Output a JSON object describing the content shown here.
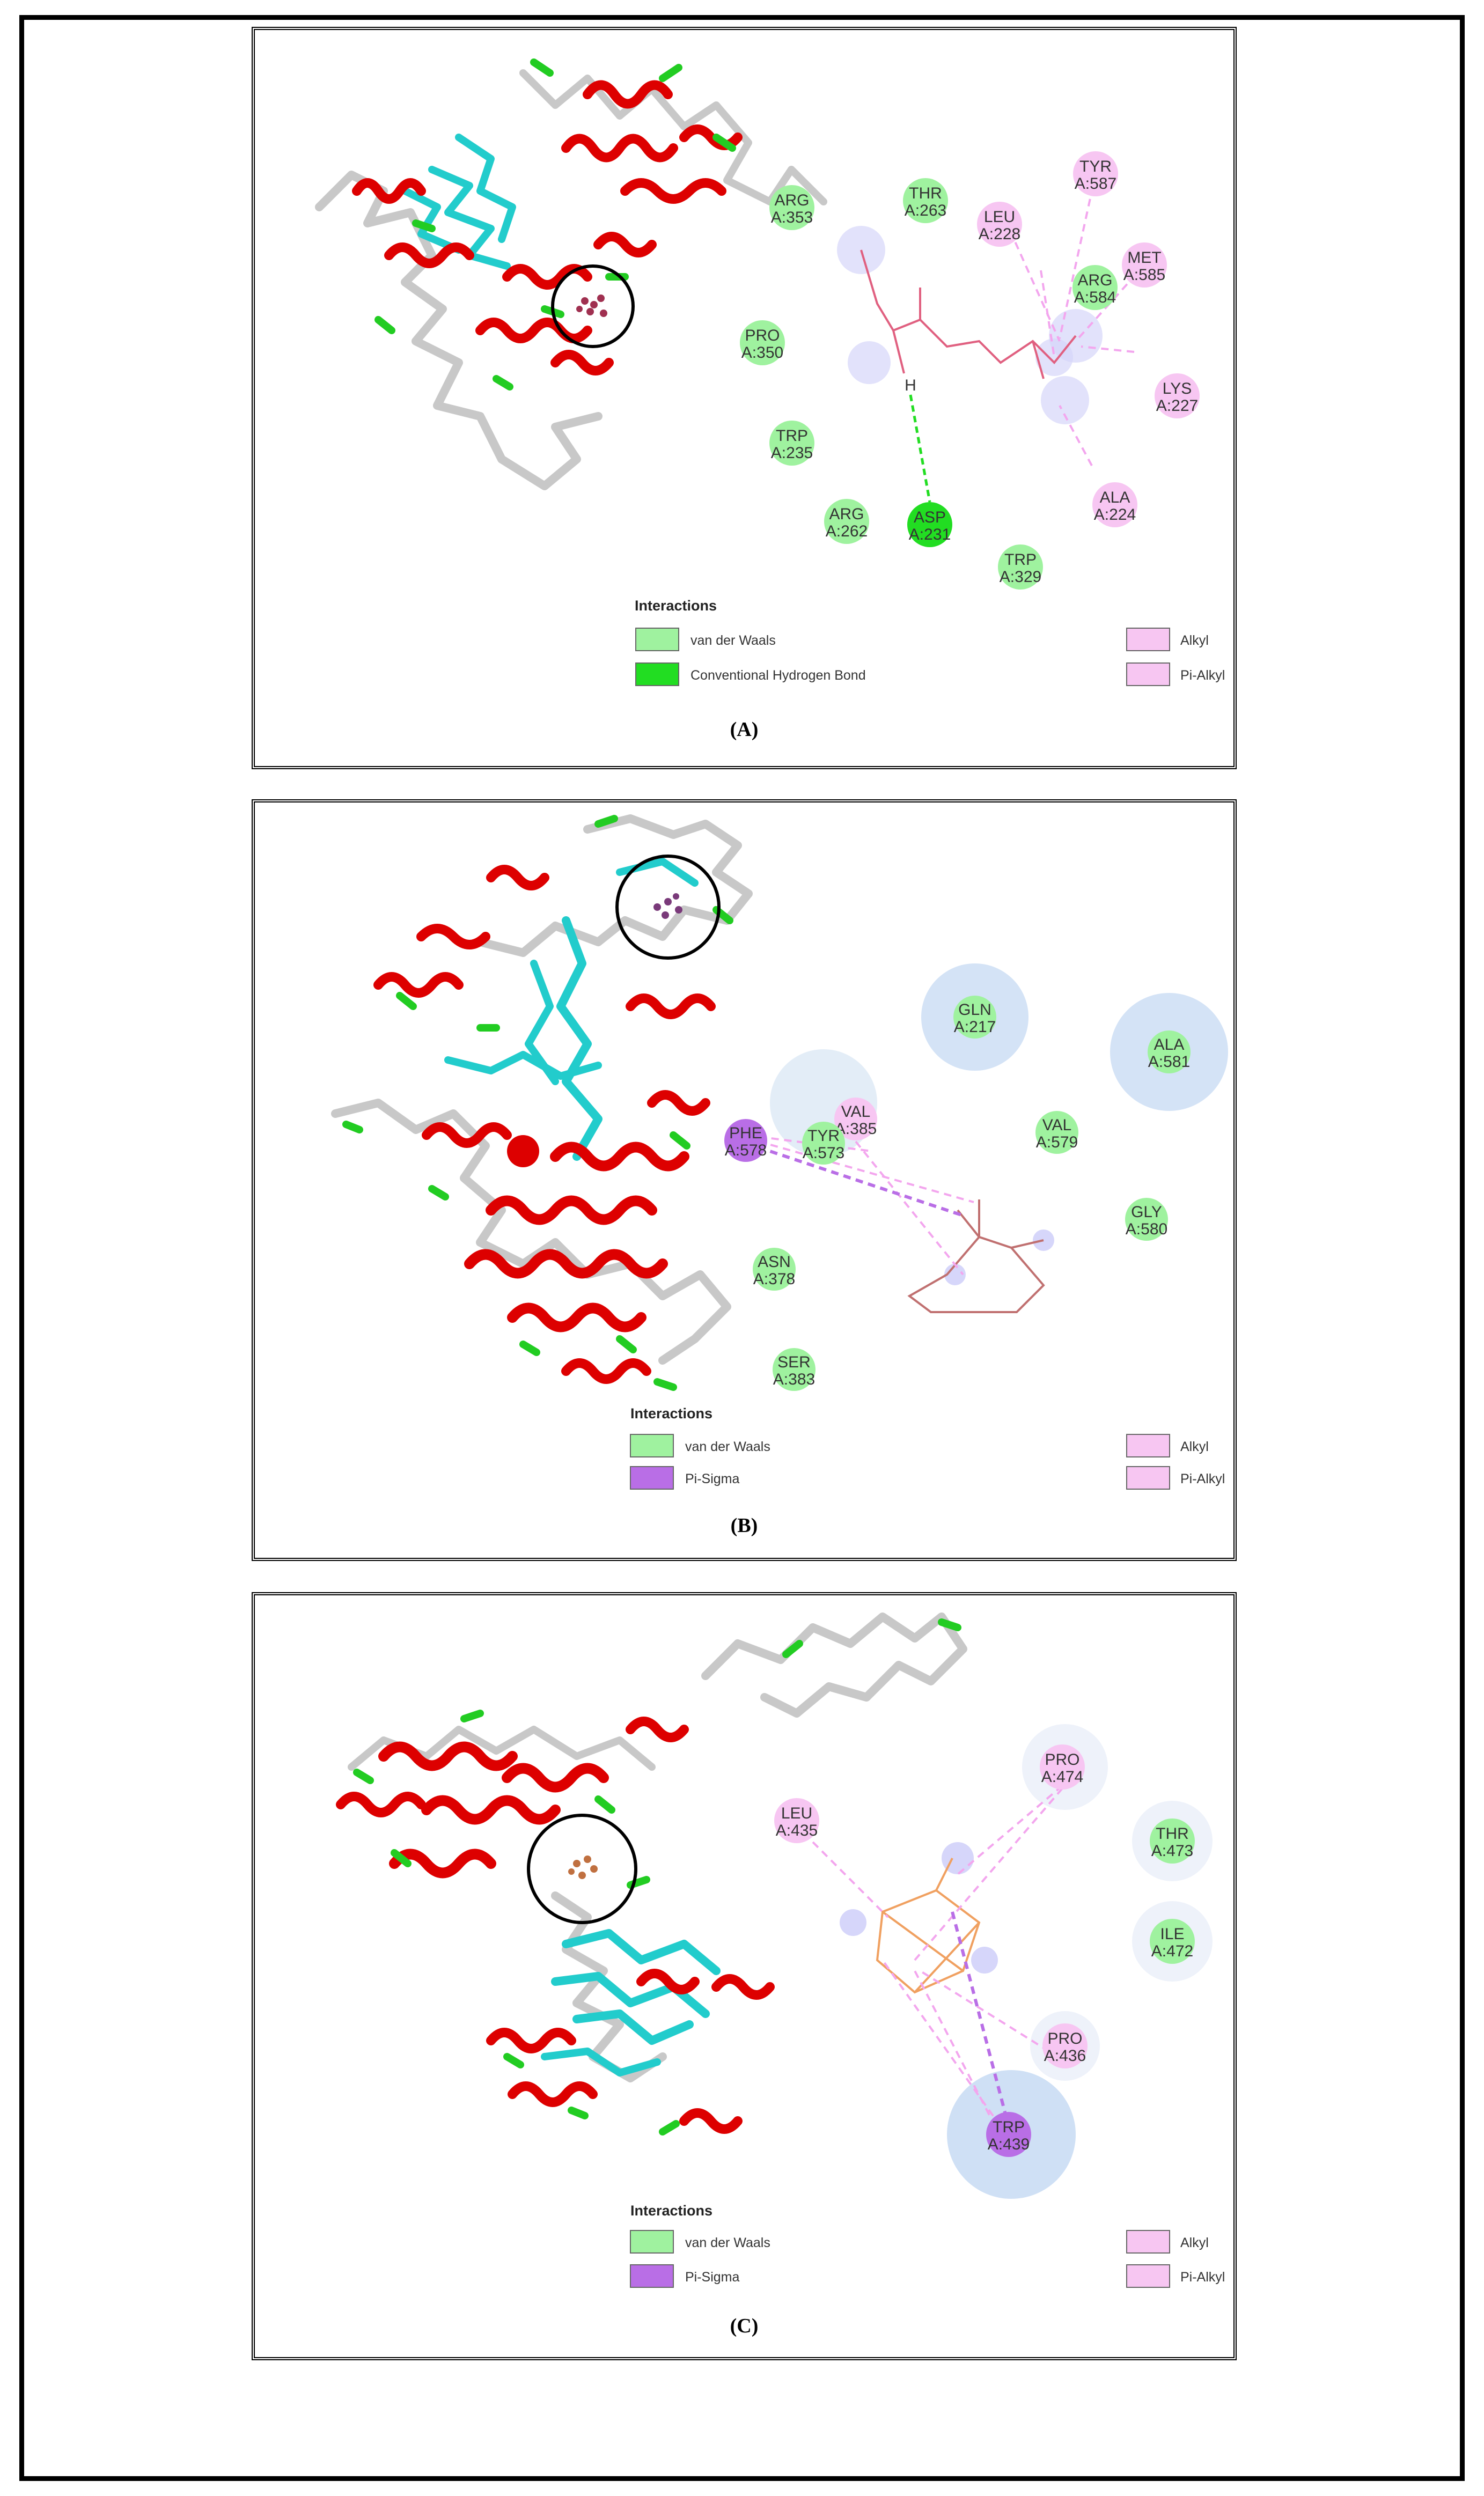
{
  "colors": {
    "van_der_waals": "#9ff29f",
    "hydrogen_bond": "#22dd22",
    "alkyl": "#f7c6f2",
    "pi_sigma": "#b96ee6",
    "helix": "#dd0000",
    "sheet": "#22cccc",
    "turn": "#22cc22",
    "coil": "#c8c8c8"
  },
  "panels": [
    {
      "label": "(A)",
      "legend_title": "Interactions",
      "legend_left": [
        "van der Waals",
        "Conventional Hydrogen Bond"
      ],
      "legend_right": [
        "Alkyl",
        "Pi-Alkyl"
      ],
      "residues": [
        {
          "l1": "ARG",
          "l2": "A:353"
        },
        {
          "l1": "THR",
          "l2": "A:263"
        },
        {
          "l1": "LEU",
          "l2": "A:228"
        },
        {
          "l1": "TYR",
          "l2": "A:587"
        },
        {
          "l1": "MET",
          "l2": "A:585"
        },
        {
          "l1": "ARG",
          "l2": "A:584"
        },
        {
          "l1": "PRO",
          "l2": "A:350"
        },
        {
          "l1": "LYS",
          "l2": "A:227"
        },
        {
          "l1": "TRP",
          "l2": "A:235"
        },
        {
          "l1": "ALA",
          "l2": "A:224"
        },
        {
          "l1": "ARG",
          "l2": "A:262"
        },
        {
          "l1": "ASP",
          "l2": "A:231"
        },
        {
          "l1": "TRP",
          "l2": "A:329"
        }
      ],
      "atom_label": "H"
    },
    {
      "label": "(B)",
      "legend_title": "Interactions",
      "legend_left": [
        "van der Waals",
        "Pi-Sigma"
      ],
      "legend_right": [
        "Alkyl",
        "Pi-Alkyl"
      ],
      "residues": [
        {
          "l1": "GLN",
          "l2": "A:217"
        },
        {
          "l1": "ALA",
          "l2": "A:581"
        },
        {
          "l1": "VAL",
          "l2": "A:385"
        },
        {
          "l1": "TYR",
          "l2": "A:573"
        },
        {
          "l1": "VAL",
          "l2": "A:579"
        },
        {
          "l1": "PHE",
          "l2": "A:578"
        },
        {
          "l1": "GLY",
          "l2": "A:580"
        },
        {
          "l1": "ASN",
          "l2": "A:378"
        },
        {
          "l1": "SER",
          "l2": "A:383"
        }
      ]
    },
    {
      "label": "(C)",
      "legend_title": "Interactions",
      "legend_left": [
        "van der Waals",
        "Pi-Sigma"
      ],
      "legend_right": [
        "Alkyl",
        "Pi-Alkyl"
      ],
      "residues": [
        {
          "l1": "PRO",
          "l2": "A:474"
        },
        {
          "l1": "LEU",
          "l2": "A:435"
        },
        {
          "l1": "THR",
          "l2": "A:473"
        },
        {
          "l1": "ILE",
          "l2": "A:472"
        },
        {
          "l1": "PRO",
          "l2": "A:436"
        },
        {
          "l1": "TRP",
          "l2": "A:439"
        }
      ]
    }
  ]
}
